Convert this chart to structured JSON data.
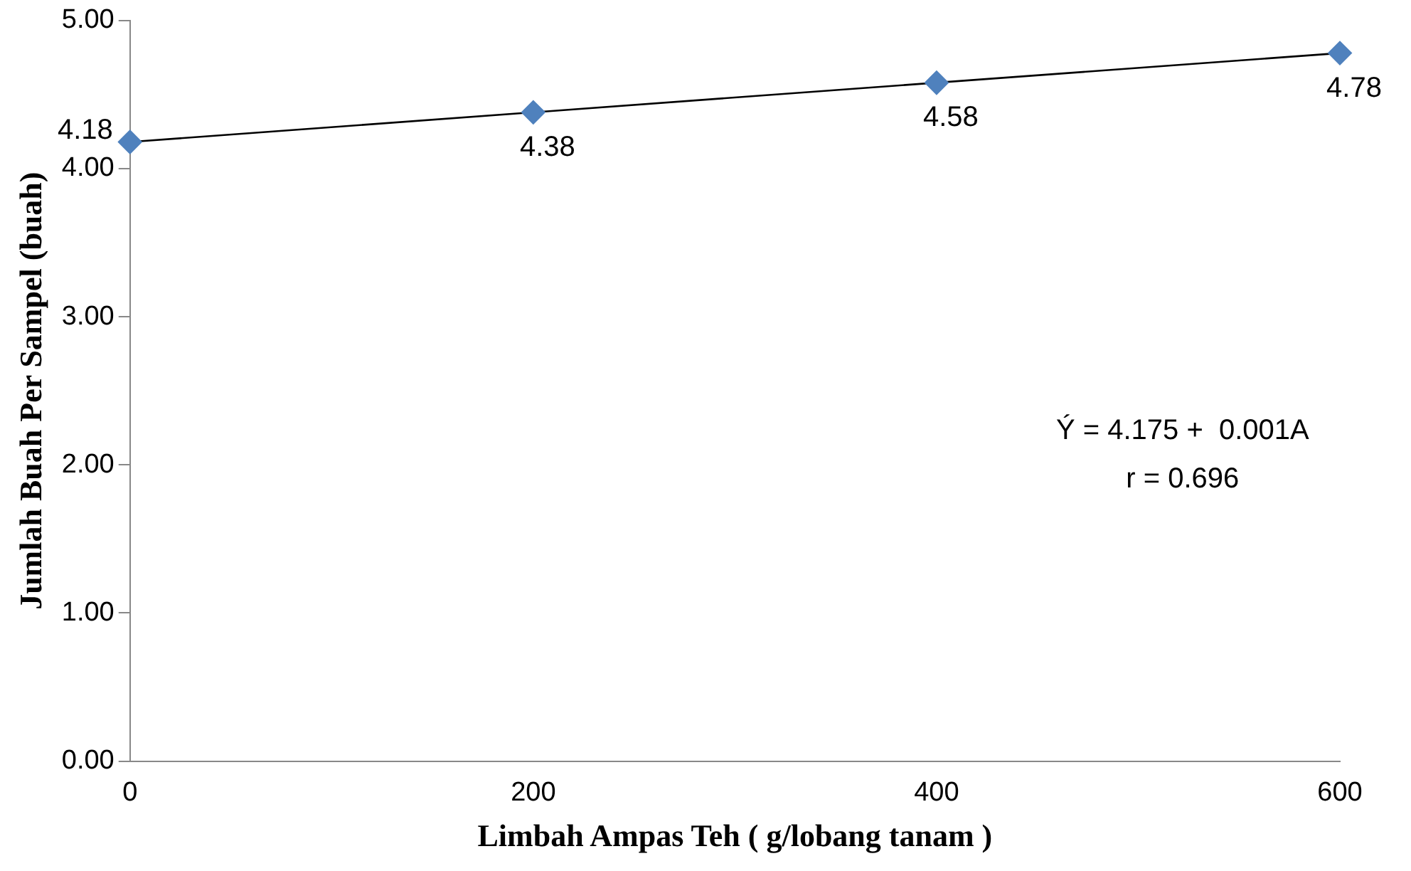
{
  "chart_data": {
    "type": "scatter",
    "xlabel": "Limbah Ampas Teh ( g/lobang tanam )",
    "ylabel": "Jumlah Buah Per Sampel (buah)",
    "x": [
      0,
      200,
      400,
      600
    ],
    "series": [
      {
        "type": "scatter",
        "color": "#4f81bd",
        "values": [
          4.18,
          4.38,
          4.58,
          4.78
        ],
        "value_labels": [
          "4.18",
          "4.38",
          "4.58",
          "4.78"
        ],
        "marker": "diamond"
      },
      {
        "type": "line",
        "color": "#000000",
        "x": [
          0,
          600
        ],
        "values": [
          4.18,
          4.78
        ],
        "marker": "none"
      }
    ],
    "xlim": [
      0,
      600
    ],
    "xticks": [
      0,
      200,
      400,
      600
    ],
    "ylim": [
      0,
      5
    ],
    "yticks": [
      {
        "value": 0,
        "label": "0.00"
      },
      {
        "value": 1,
        "label": "1.00"
      },
      {
        "value": 2,
        "label": "2.00"
      },
      {
        "value": 3,
        "label": "3.00"
      },
      {
        "value": 4,
        "label": "4.00"
      },
      {
        "value": 5,
        "label": "5.00"
      }
    ],
    "grid": false,
    "legend": false,
    "annotations": [
      "Ý = 4.175 +  0.001A",
      "r = 0.696"
    ]
  }
}
